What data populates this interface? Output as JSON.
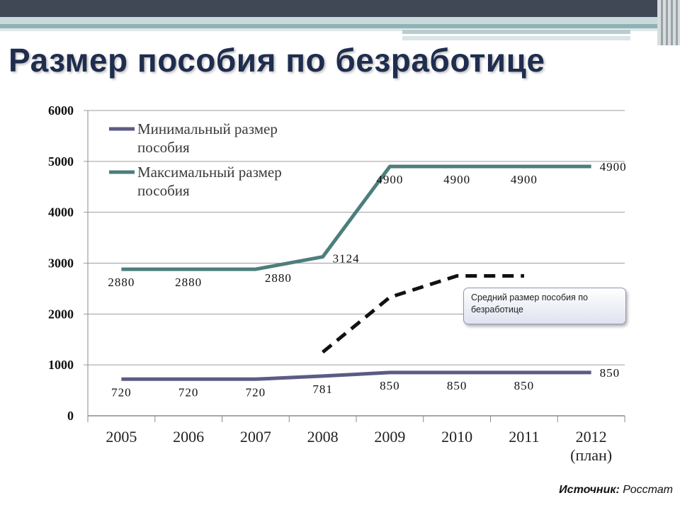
{
  "slide": {
    "title": "Размер пособия по безработице",
    "source_label": "Источник:",
    "source_value": " Росстат"
  },
  "callout": {
    "text": "Средний размер пособия по безработице"
  },
  "chart_data": {
    "type": "line",
    "categories": [
      "2005",
      "2006",
      "2007",
      "2008",
      "2009",
      "2010",
      "2011",
      "2012"
    ],
    "category_sublabels": [
      "",
      "",
      "",
      "",
      "",
      "",
      "",
      "(план)"
    ],
    "ylim": [
      0,
      6000
    ],
    "yticks": [
      0,
      1000,
      2000,
      3000,
      4000,
      5000,
      6000
    ],
    "grid": true,
    "legend_position": "top-left",
    "series": [
      {
        "name": "Минимальный размер пособия",
        "legend_lines": [
          "Минимальный размер",
          "пособия"
        ],
        "color": "#5b5b85",
        "values": [
          720,
          720,
          720,
          781,
          850,
          850,
          850,
          850
        ],
        "labels": [
          "720",
          "720",
          "720",
          "781",
          "850",
          "850",
          "850",
          "850"
        ]
      },
      {
        "name": "Максимальный размер пособия",
        "legend_lines": [
          "Максимальный размер",
          "пособия"
        ],
        "color": "#4c7e7c",
        "values": [
          2880,
          2880,
          2880,
          3124,
          4900,
          4900,
          4900,
          4900
        ],
        "labels": [
          "2880",
          "2880",
          "2880",
          "3124",
          "4900",
          "4900",
          "4900",
          "4900"
        ]
      },
      {
        "name": "Средний размер пособия по безработице",
        "style": "dashed",
        "color": "#111111",
        "x": [
          "2008",
          "2009",
          "2010",
          "2011"
        ],
        "values": [
          1250,
          2330,
          2750,
          2750
        ]
      }
    ]
  }
}
